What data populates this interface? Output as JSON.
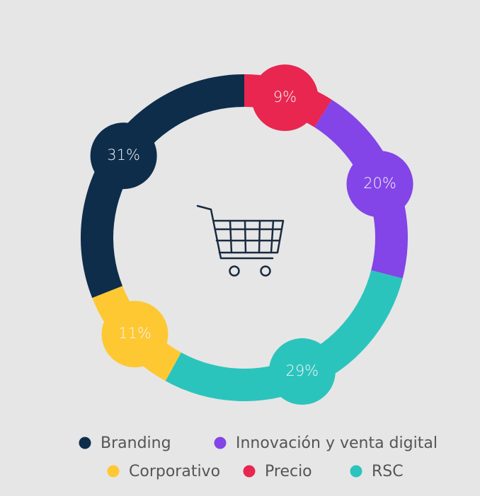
{
  "chart_data": {
    "type": "donut",
    "categories": [
      "Precio",
      "Innovación y venta digital",
      "RSC",
      "Corporativo",
      "Branding"
    ],
    "values": [
      9,
      20,
      29,
      11,
      31
    ],
    "value_labels": [
      "9%",
      "20%",
      "29%",
      "11%",
      "31%"
    ],
    "colors": [
      "#e8264f",
      "#8344e8",
      "#2bc4bd",
      "#fec833",
      "#0d2d4b"
    ]
  }
}
